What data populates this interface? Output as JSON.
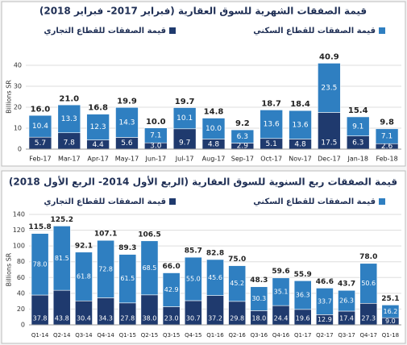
{
  "chart_data": [
    {
      "type": "bar",
      "stacked": true,
      "title": "قيمة الصفقات الشهرية للسوق العقارية (فبراير 2017- فبراير 2018)",
      "y_label": "Billions SR",
      "categories": [
        "Feb-17",
        "Mar-17",
        "Apr-17",
        "May-17",
        "Jun-17",
        "Jul-17",
        "Aug-17",
        "Sep-17",
        "Oct-17",
        "Nov-17",
        "Dec-17",
        "Jan-18",
        "Feb-18"
      ],
      "series": [
        {
          "name": "قيمة الصفقات للقطاع التجاري",
          "color": "#1f3a6e",
          "values": [
            5.7,
            7.8,
            4.4,
            5.6,
            3.0,
            9.7,
            4.8,
            2.9,
            5.1,
            4.8,
            17.5,
            6.3,
            2.6
          ],
          "value_labels": [
            "5.7",
            "7.8",
            "4.4",
            "5.6",
            "3.0",
            "9.7",
            "4.8",
            "2.9",
            "5.1",
            "4.8",
            "17.5",
            "6.3",
            "2.6"
          ]
        },
        {
          "name": "قيمة الصفقات للقطاع السكني",
          "color": "#2f7fc1",
          "values": [
            10.4,
            13.3,
            12.3,
            14.3,
            7.1,
            10.1,
            10.0,
            6.3,
            13.6,
            13.6,
            23.5,
            9.1,
            7.1
          ],
          "value_labels": [
            "10.4",
            "13.3",
            "12.3",
            "14.3",
            "7.1",
            "10.1",
            "10.0",
            "6.3",
            "13.6",
            "13.6",
            "23.5",
            "9.1",
            "7.1"
          ]
        }
      ],
      "totals": {
        "values": [
          16.0,
          21.0,
          16.8,
          19.9,
          10.0,
          19.7,
          14.8,
          9.2,
          18.7,
          18.4,
          40.9,
          15.4,
          9.8
        ],
        "value_labels": [
          "16.0",
          "21.0",
          "16.8",
          "19.9",
          "10.0",
          "19.7",
          "14.8",
          "9.2",
          "18.7",
          "18.4",
          "40.9",
          "15.4",
          "9.8"
        ]
      },
      "ylim": [
        0,
        50
      ],
      "yticks": [
        0,
        10,
        20,
        30,
        40
      ],
      "grid": true
    },
    {
      "type": "bar",
      "stacked": true,
      "title": "قيمة الصفقات ربع السنوية للسوق العقارية (الربع الأول 2014- الربع الأول 2018)",
      "y_label": "Billions SR",
      "categories": [
        "Q1-14",
        "Q2-14",
        "Q3-14",
        "Q4-14",
        "Q1-15",
        "Q2-15",
        "Q3-15",
        "Q4-15",
        "Q1-16",
        "Q2-16",
        "Q3-16",
        "Q4-16",
        "Q1-17",
        "Q2-17",
        "Q3-17",
        "Q4-17",
        "Q1-18"
      ],
      "series": [
        {
          "name": "قيمة الصفقات للقطاع التجاري",
          "color": "#1f3a6e",
          "values": [
            37.8,
            43.8,
            30.4,
            34.3,
            27.8,
            38.0,
            23.0,
            30.7,
            37.2,
            29.8,
            18.0,
            24.4,
            19.6,
            12.9,
            17.4,
            27.3,
            9.0
          ],
          "value_labels": [
            "37.8",
            "43.8",
            "30.4",
            "34.3",
            "27.8",
            "38.0",
            "23.0",
            "30.7",
            "37.2",
            "29.8",
            "18.0",
            "24.4",
            "19.6",
            "12.9",
            "17.4",
            "27.3",
            "9.0"
          ]
        },
        {
          "name": "قيمة الصفقات للقطاع السكني",
          "color": "#2f7fc1",
          "values": [
            78.0,
            81.5,
            61.8,
            72.8,
            61.5,
            68.5,
            42.9,
            55.0,
            45.6,
            45.2,
            30.3,
            35.1,
            36.3,
            33.7,
            26.3,
            50.6,
            16.2
          ],
          "value_labels": [
            "78.0",
            "81.5",
            "61.8",
            "72.8",
            "61.5",
            "68.5",
            "42.9",
            "55.0",
            "45.6",
            "45.2",
            "30.3",
            "35.1",
            "36.3",
            "33.7",
            "26.3",
            "50.6",
            "16.2"
          ]
        }
      ],
      "totals": {
        "values": [
          115.8,
          125.2,
          92.1,
          107.1,
          89.3,
          106.5,
          66.0,
          85.7,
          82.8,
          75.0,
          48.3,
          59.6,
          55.9,
          46.6,
          43.7,
          78.0,
          25.1
        ],
        "value_labels": [
          "115.8",
          "125.2",
          "92.1",
          "107.1",
          "89.3",
          "106.5",
          "66.0",
          "85.7",
          "82.8",
          "75.0",
          "48.3",
          "59.6",
          "55.9",
          "46.6",
          "43.7",
          "78.0",
          "25.1"
        ]
      },
      "ylim": [
        0,
        140
      ],
      "yticks": [
        0,
        20,
        40,
        60,
        80,
        100,
        120,
        140
      ],
      "grid": true
    }
  ]
}
